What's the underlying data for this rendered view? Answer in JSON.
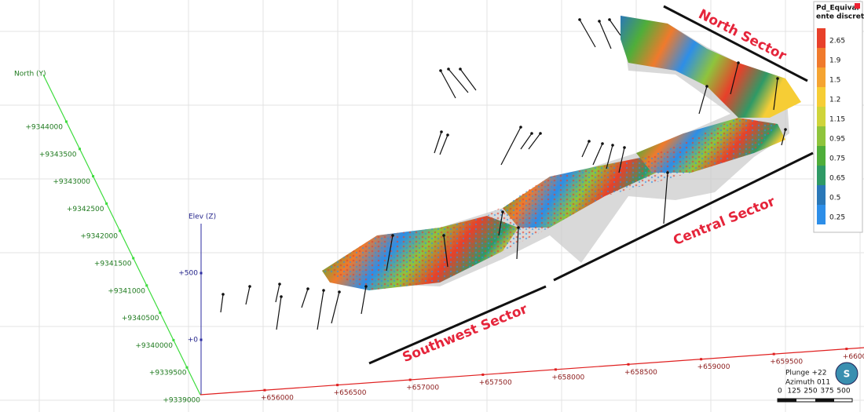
{
  "north_axis": {
    "title": "North (Y)",
    "ticks": [
      "+9344000",
      "+9343500",
      "+9343000",
      "+9342500",
      "+9342000",
      "+9341500",
      "+9341000",
      "+9340500",
      "+9340000",
      "+9339500",
      "+9339000"
    ]
  },
  "elev_axis": {
    "title": "Elev (Z)",
    "ticks": [
      "+500",
      "+0"
    ]
  },
  "east_axis": {
    "ticks": [
      "+656000",
      "+656500",
      "+657000",
      "+657500",
      "+658000",
      "+658500",
      "+659000",
      "+659500",
      "+6600"
    ]
  },
  "legend": {
    "title_lines": [
      "Pd_Equival",
      "ente discrete"
    ],
    "items": [
      {
        "label": "2.65",
        "color": "#e8402a"
      },
      {
        "label": "1.9",
        "color": "#f07a2c"
      },
      {
        "label": "1.5",
        "color": "#f5a431"
      },
      {
        "label": "1.2",
        "color": "#f6cd35"
      },
      {
        "label": "1.15",
        "color": "#cfd43a"
      },
      {
        "label": "0.95",
        "color": "#8fc43c"
      },
      {
        "label": "0.75",
        "color": "#4fae3a"
      },
      {
        "label": "0.65",
        "color": "#2f9a66"
      },
      {
        "label": "0.5",
        "color": "#2a78b8"
      },
      {
        "label": "0.25",
        "color": "#2d8ee8"
      }
    ]
  },
  "sectors": [
    "North Sector",
    "Central Sector",
    "Southwest Sector"
  ],
  "view": {
    "plunge": "Plunge +22",
    "azimuth": "Azimuth 011",
    "compass": "S"
  },
  "scale_bar": [
    "0",
    "125",
    "250",
    "375",
    "500"
  ]
}
